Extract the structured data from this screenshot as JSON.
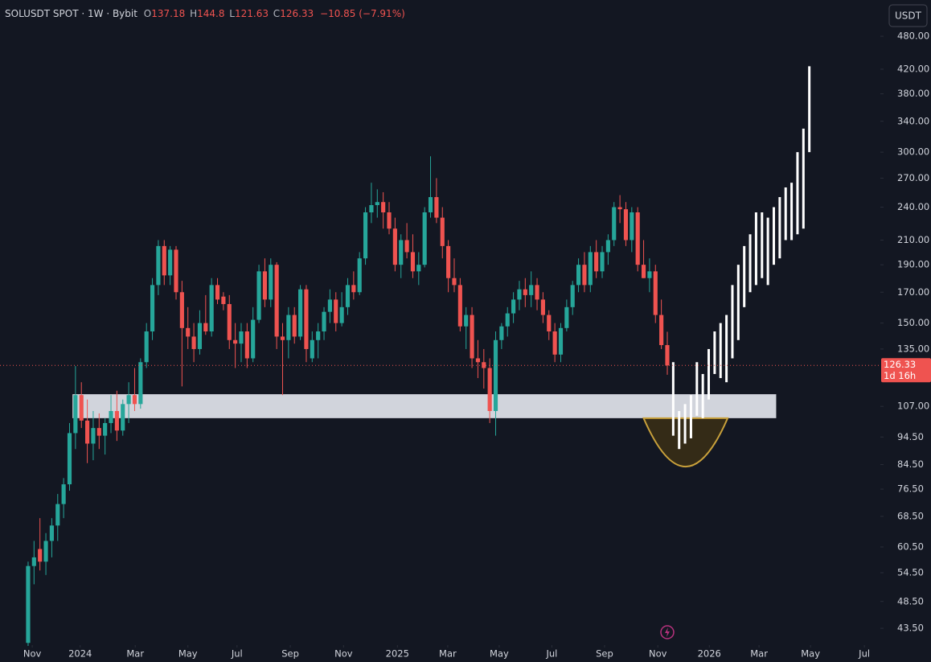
{
  "chart_data": {
    "type": "candlestick",
    "title": "SOLUSDT SPOT · 1W · Bybit",
    "ohlc_labels": [
      "O",
      "H",
      "L",
      "C"
    ],
    "change_label": "−10.85 (−7.91%)",
    "currency": "USDT",
    "countdown": "1d 16h",
    "log_scale": true,
    "grid": false,
    "up_color": "#26a69a",
    "down_color": "#ef5350",
    "ylim": [
      40.9,
      556
    ],
    "yticks": [
      {
        "value": 480,
        "label": "480.00"
      },
      {
        "value": 420,
        "label": "420.00"
      },
      {
        "value": 380,
        "label": "380.00"
      },
      {
        "value": 340,
        "label": "340.00"
      },
      {
        "value": 300,
        "label": "300.00"
      },
      {
        "value": 270,
        "label": "270.00"
      },
      {
        "value": 240,
        "label": "240.00"
      },
      {
        "value": 210,
        "label": "210.00"
      },
      {
        "value": 190,
        "label": "190.00"
      },
      {
        "value": 170,
        "label": "170.00"
      },
      {
        "value": 150,
        "label": "150.00"
      },
      {
        "value": 135,
        "label": "135.00"
      },
      {
        "value": 107,
        "label": "107.00"
      },
      {
        "value": 94.5,
        "label": "94.50"
      },
      {
        "value": 84.5,
        "label": "84.50"
      },
      {
        "value": 76.5,
        "label": "76.50"
      },
      {
        "value": 68.5,
        "label": "68.50"
      },
      {
        "value": 60.5,
        "label": "60.50"
      },
      {
        "value": 54.5,
        "label": "54.50"
      },
      {
        "value": 48.5,
        "label": "48.50"
      },
      {
        "value": 43.5,
        "label": "43.50"
      }
    ],
    "xlim": [
      -4.75,
      144
    ],
    "xticks": [
      {
        "value": 0.7,
        "label": "Nov"
      },
      {
        "value": 8.8,
        "label": "2024"
      },
      {
        "value": 18.1,
        "label": "Mar"
      },
      {
        "value": 27.0,
        "label": "May"
      },
      {
        "value": 35.3,
        "label": "Jul"
      },
      {
        "value": 44.3,
        "label": "Sep"
      },
      {
        "value": 53.3,
        "label": "Nov"
      },
      {
        "value": 62.4,
        "label": "2025"
      },
      {
        "value": 70.9,
        "label": "Mar"
      },
      {
        "value": 79.6,
        "label": "May"
      },
      {
        "value": 88.5,
        "label": "Jul"
      },
      {
        "value": 97.4,
        "label": "Sep"
      },
      {
        "value": 106.4,
        "label": "Nov"
      },
      {
        "value": 115.1,
        "label": "2026"
      },
      {
        "value": 123.5,
        "label": "Mar"
      },
      {
        "value": 132.2,
        "label": "May"
      },
      {
        "value": 141.3,
        "label": "Jul"
      }
    ],
    "open": [
      41,
      56,
      60,
      57,
      62,
      66,
      72,
      78,
      96,
      112,
      101,
      92,
      98,
      95,
      100,
      105,
      97,
      108,
      112,
      108,
      128,
      145,
      175,
      205,
      182,
      202,
      170,
      147,
      142,
      135,
      150,
      145,
      175,
      167,
      162,
      140,
      138,
      145,
      130,
      152,
      185,
      165,
      190,
      142,
      140,
      155,
      142,
      172,
      130,
      140,
      145,
      157,
      165,
      150,
      160,
      175,
      170,
      195,
      235,
      242,
      245,
      235,
      220,
      190,
      210,
      200,
      185,
      190,
      235,
      250,
      230,
      205,
      180,
      175,
      148,
      155,
      130,
      128,
      125,
      105,
      140,
      148,
      156,
      165,
      172,
      168,
      175,
      165,
      155,
      145,
      132,
      147,
      160,
      175,
      190,
      175,
      200,
      185,
      200,
      210,
      240,
      238,
      210,
      235,
      190,
      180,
      185,
      155,
      137.18
    ],
    "high": [
      57,
      62,
      68,
      64,
      68,
      75,
      80,
      100,
      126,
      118,
      110,
      105,
      104,
      102,
      112,
      114,
      110,
      118,
      125,
      130,
      150,
      180,
      210,
      210,
      205,
      205,
      178,
      160,
      150,
      158,
      168,
      180,
      180,
      170,
      168,
      150,
      150,
      150,
      160,
      190,
      195,
      195,
      192,
      150,
      160,
      160,
      175,
      175,
      145,
      150,
      160,
      172,
      170,
      170,
      180,
      185,
      200,
      240,
      265,
      258,
      255,
      245,
      230,
      215,
      225,
      215,
      200,
      240,
      295,
      270,
      240,
      210,
      195,
      180,
      160,
      160,
      140,
      135,
      130,
      145,
      150,
      160,
      170,
      178,
      180,
      185,
      180,
      170,
      158,
      150,
      150,
      165,
      178,
      195,
      200,
      205,
      210,
      205,
      215,
      245,
      252,
      245,
      240,
      240,
      210,
      195,
      190,
      165,
      144.8
    ],
    "low": [
      40.5,
      52,
      55,
      54,
      58,
      62,
      68,
      76,
      90,
      98,
      85,
      86,
      90,
      88,
      96,
      93,
      95,
      100,
      105,
      106,
      125,
      140,
      168,
      175,
      175,
      165,
      116,
      135,
      128,
      132,
      143,
      142,
      162,
      158,
      135,
      125,
      128,
      125,
      128,
      150,
      160,
      160,
      135,
      112,
      130,
      138,
      140,
      128,
      128,
      130,
      140,
      150,
      145,
      148,
      155,
      165,
      168,
      190,
      225,
      230,
      220,
      215,
      185,
      180,
      195,
      180,
      175,
      188,
      230,
      225,
      195,
      170,
      170,
      145,
      135,
      125,
      120,
      115,
      100,
      95,
      135,
      142,
      150,
      158,
      160,
      160,
      158,
      150,
      140,
      128,
      128,
      145,
      155,
      170,
      170,
      170,
      180,
      180,
      190,
      205,
      225,
      205,
      200,
      185,
      180,
      170,
      150,
      135,
      121.63
    ],
    "close": [
      56,
      58,
      57,
      62,
      66,
      72,
      78,
      96,
      112,
      101,
      92,
      98,
      95,
      100,
      105,
      97,
      108,
      112,
      108,
      128,
      145,
      175,
      205,
      182,
      202,
      170,
      147,
      142,
      135,
      150,
      145,
      175,
      165,
      162,
      140,
      138,
      145,
      130,
      152,
      185,
      165,
      190,
      142,
      140,
      155,
      142,
      172,
      135,
      140,
      145,
      157,
      165,
      150,
      160,
      175,
      170,
      195,
      235,
      242,
      245,
      235,
      220,
      190,
      210,
      200,
      185,
      190,
      235,
      250,
      230,
      205,
      180,
      175,
      148,
      155,
      130,
      128,
      125,
      105,
      140,
      148,
      156,
      165,
      172,
      168,
      175,
      165,
      155,
      145,
      132,
      147,
      160,
      175,
      190,
      175,
      200,
      185,
      200,
      210,
      240,
      238,
      210,
      235,
      190,
      180,
      185,
      155,
      137.18,
      126.33
    ],
    "projection": {
      "color": "#ffffff",
      "x": [
        109,
        110,
        111,
        112,
        113,
        114,
        115,
        116,
        117,
        118,
        119,
        120,
        121,
        122,
        123,
        124,
        125,
        126,
        127,
        128,
        129,
        130,
        131,
        132
      ],
      "low": [
        95,
        90,
        92,
        94,
        103,
        102,
        110,
        122,
        120,
        118,
        130,
        140,
        160,
        170,
        175,
        180,
        175,
        190,
        195,
        210,
        210,
        215,
        220,
        300
      ],
      "high": [
        128,
        105,
        108,
        112,
        128,
        122,
        135,
        145,
        150,
        155,
        175,
        190,
        205,
        215,
        235,
        235,
        230,
        240,
        250,
        260,
        265,
        300,
        330,
        425
      ]
    },
    "zone": {
      "low": 102,
      "high": 112.4,
      "x": [
        7.5,
        126.4
      ],
      "color": "#d1d4dc"
    },
    "arc": {
      "top": 102,
      "bottom": 83.8,
      "x": [
        104,
        118.2
      ],
      "color": "#c9a13b"
    }
  }
}
